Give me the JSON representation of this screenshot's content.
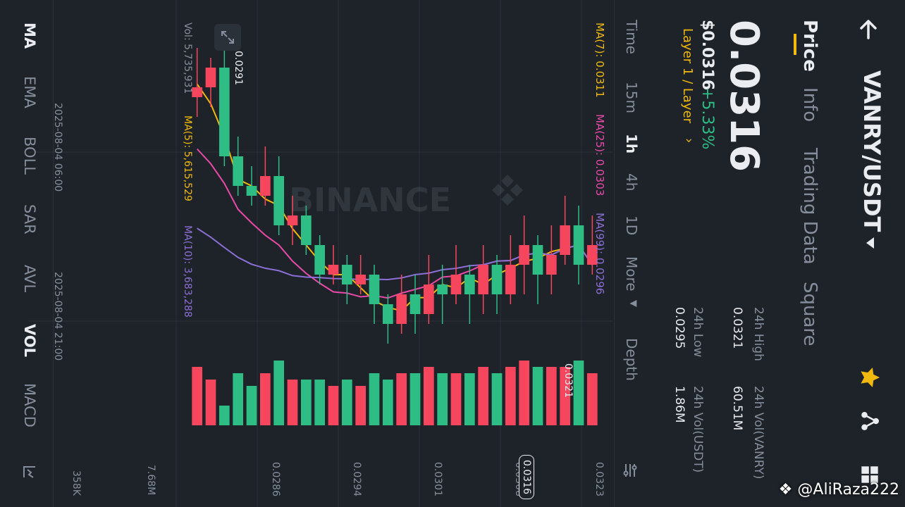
{
  "header": {
    "pair": "VANRY/USDT",
    "tabs": [
      "Price",
      "Info",
      "Trading Data",
      "Square"
    ],
    "active_tab": "Price"
  },
  "price": {
    "last": "0.0316",
    "usd": "$0.0316",
    "change": "+5.33%",
    "tag": "Layer 1 / Layer",
    "stats": [
      {
        "label": "24h High",
        "value": "0.0321"
      },
      {
        "label": "24h Vol(VANRY)",
        "value": "60.51M"
      },
      {
        "label": "24h Low",
        "value": "0.0295"
      },
      {
        "label": "24h Vol(USDT)",
        "value": "1.86M"
      }
    ]
  },
  "timeframes": [
    "Time",
    "15m",
    "1h",
    "4h",
    "1D",
    "More",
    "Depth"
  ],
  "active_timeframe": "1h",
  "indicators_top": {
    "ma7": "MA(7): 0.0311",
    "ma25": "MA(25): 0.0303",
    "ma99": "MA(99): 0.0296"
  },
  "volume_labels": {
    "vol": "Vol: 5,735,931",
    "ma5": "MA(5): 5,615,529",
    "ma10": "MA(10): 3,683,288"
  },
  "price_axis": [
    "0.0323",
    "0.0308",
    "0.0301",
    "0.0294",
    "0.0286"
  ],
  "volume_axis": [
    "7.68M",
    "358K"
  ],
  "time_labels": [
    "2025-08-04 06:00",
    "2025-08-04 21:00"
  ],
  "chart_marks": {
    "high_label": "0.0321",
    "low_label": "0.0291",
    "current_price_tag": "0.0316"
  },
  "bottom_indicators": [
    "MA",
    "EMA",
    "BOLL",
    "SAR",
    "AVL",
    "VOL",
    "MACD"
  ],
  "active_bottom": [
    "MA",
    "VOL"
  ],
  "watermark": "BINANCE",
  "credit": "@AliRaza222",
  "colors": {
    "up": "#2ebd85",
    "down": "#f6465d",
    "ma7": "#f0b90b",
    "ma25": "#e84aa8",
    "ma99": "#8c6fd6",
    "accent": "#f0b90b"
  },
  "chart_data": {
    "type": "candlestick",
    "series": [
      {
        "o": 0.0301,
        "h": 0.0304,
        "l": 0.0298,
        "c": 0.0299
      },
      {
        "o": 0.0299,
        "h": 0.0305,
        "l": 0.0297,
        "c": 0.0303
      },
      {
        "o": 0.0303,
        "h": 0.0306,
        "l": 0.0299,
        "c": 0.03
      },
      {
        "o": 0.03,
        "h": 0.0303,
        "l": 0.0296,
        "c": 0.0298
      },
      {
        "o": 0.0298,
        "h": 0.0302,
        "l": 0.0295,
        "c": 0.0301
      },
      {
        "o": 0.0301,
        "h": 0.0304,
        "l": 0.0296,
        "c": 0.0299
      },
      {
        "o": 0.0299,
        "h": 0.0302,
        "l": 0.0295,
        "c": 0.0296
      },
      {
        "o": 0.0296,
        "h": 0.03,
        "l": 0.0294,
        "c": 0.0299
      },
      {
        "o": 0.0299,
        "h": 0.0301,
        "l": 0.0294,
        "c": 0.0296
      },
      {
        "o": 0.0296,
        "h": 0.0299,
        "l": 0.0293,
        "c": 0.0298
      },
      {
        "o": 0.0298,
        "h": 0.0301,
        "l": 0.0295,
        "c": 0.0296
      },
      {
        "o": 0.0296,
        "h": 0.0299,
        "l": 0.0293,
        "c": 0.0297
      },
      {
        "o": 0.0297,
        "h": 0.03,
        "l": 0.0293,
        "c": 0.0294
      },
      {
        "o": 0.0294,
        "h": 0.0298,
        "l": 0.0292,
        "c": 0.0296
      },
      {
        "o": 0.0296,
        "h": 0.0298,
        "l": 0.0292,
        "c": 0.0293
      },
      {
        "o": 0.0293,
        "h": 0.0296,
        "l": 0.0291,
        "c": 0.0295
      },
      {
        "o": 0.0295,
        "h": 0.0299,
        "l": 0.0293,
        "c": 0.0298
      },
      {
        "o": 0.0298,
        "h": 0.03,
        "l": 0.0296,
        "c": 0.0297
      },
      {
        "o": 0.0297,
        "h": 0.03,
        "l": 0.0295,
        "c": 0.0299
      },
      {
        "o": 0.0299,
        "h": 0.0301,
        "l": 0.0297,
        "c": 0.0298
      },
      {
        "o": 0.0298,
        "h": 0.0302,
        "l": 0.0297,
        "c": 0.0301
      },
      {
        "o": 0.0301,
        "h": 0.0305,
        "l": 0.03,
        "c": 0.0304
      },
      {
        "o": 0.0304,
        "h": 0.0306,
        "l": 0.0301,
        "c": 0.0303
      },
      {
        "o": 0.0303,
        "h": 0.031,
        "l": 0.0302,
        "c": 0.0308
      },
      {
        "o": 0.0308,
        "h": 0.0311,
        "l": 0.0305,
        "c": 0.0306
      },
      {
        "o": 0.0306,
        "h": 0.0309,
        "l": 0.0305,
        "c": 0.0307
      },
      {
        "o": 0.0307,
        "h": 0.0312,
        "l": 0.0306,
        "c": 0.031
      },
      {
        "o": 0.031,
        "h": 0.0321,
        "l": 0.0309,
        "c": 0.0319
      },
      {
        "o": 0.0319,
        "h": 0.032,
        "l": 0.0315,
        "c": 0.0317
      },
      {
        "o": 0.0317,
        "h": 0.0321,
        "l": 0.0314,
        "c": 0.0316
      }
    ],
    "ylim": [
      0.0283,
      0.0323
    ]
  }
}
